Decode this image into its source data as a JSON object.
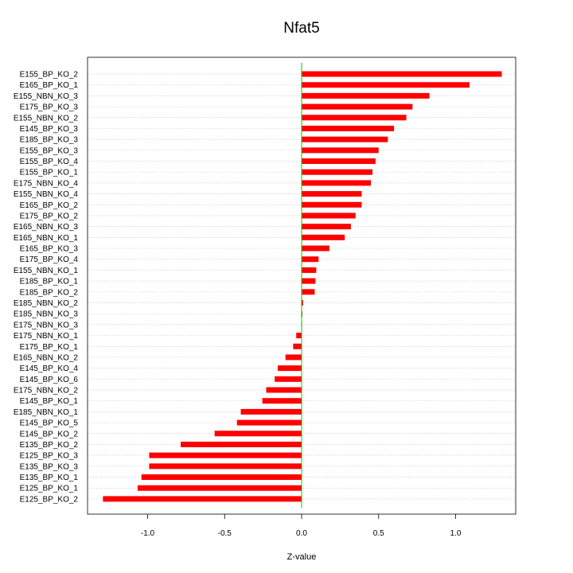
{
  "chart_data": {
    "type": "bar",
    "orientation": "horizontal",
    "title": "Nfat5",
    "xlabel": "Z-value",
    "ylabel": "",
    "xlim": [
      -1.35,
      1.4
    ],
    "xticks": [
      -1.0,
      -0.5,
      0.0,
      0.5,
      1.0
    ],
    "xtick_labels": [
      "-1.0",
      "-0.5",
      "0.0",
      "0.5",
      "1.0"
    ],
    "grid": "horizontal dotted",
    "bar_color": "#ff0000",
    "zero_line_color": "#00cc00",
    "categories": [
      "E155_BP_KO_2",
      "E165_BP_KO_1",
      "E155_NBN_KO_3",
      "E175_BP_KO_3",
      "E155_NBN_KO_2",
      "E145_BP_KO_3",
      "E185_BP_KO_3",
      "E155_BP_KO_3",
      "E155_BP_KO_4",
      "E155_BP_KO_1",
      "E175_NBN_KO_4",
      "E155_NBN_KO_4",
      "E165_BP_KO_2",
      "E175_BP_KO_2",
      "E165_NBN_KO_3",
      "E165_NBN_KO_1",
      "E165_BP_KO_3",
      "E175_BP_KO_4",
      "E155_NBN_KO_1",
      "E185_BP_KO_1",
      "E185_BP_KO_2",
      "E185_NBN_KO_2",
      "E185_NBN_KO_3",
      "E175_NBN_KO_3",
      "E175_NBN_KO_1",
      "E175_BP_KO_1",
      "E165_NBN_KO_2",
      "E145_BP_KO_4",
      "E145_BP_KO_6",
      "E175_NBN_KO_2",
      "E145_BP_KO_1",
      "E185_NBN_KO_1",
      "E145_BP_KO_5",
      "E145_BP_KO_2",
      "E135_BP_KO_2",
      "E125_BP_KO_3",
      "E135_BP_KO_3",
      "E135_BP_KO_1",
      "E125_BP_KO_1",
      "E125_BP_KO_2"
    ],
    "values": [
      1.3,
      1.09,
      0.83,
      0.72,
      0.68,
      0.6,
      0.56,
      0.5,
      0.48,
      0.46,
      0.45,
      0.39,
      0.39,
      0.35,
      0.32,
      0.28,
      0.18,
      0.11,
      0.095,
      0.09,
      0.085,
      0.01,
      0.005,
      0.0,
      -0.035,
      -0.055,
      -0.105,
      -0.155,
      -0.175,
      -0.23,
      -0.255,
      -0.395,
      -0.42,
      -0.565,
      -0.785,
      -0.99,
      -0.99,
      -1.04,
      -1.065,
      -1.29
    ]
  }
}
